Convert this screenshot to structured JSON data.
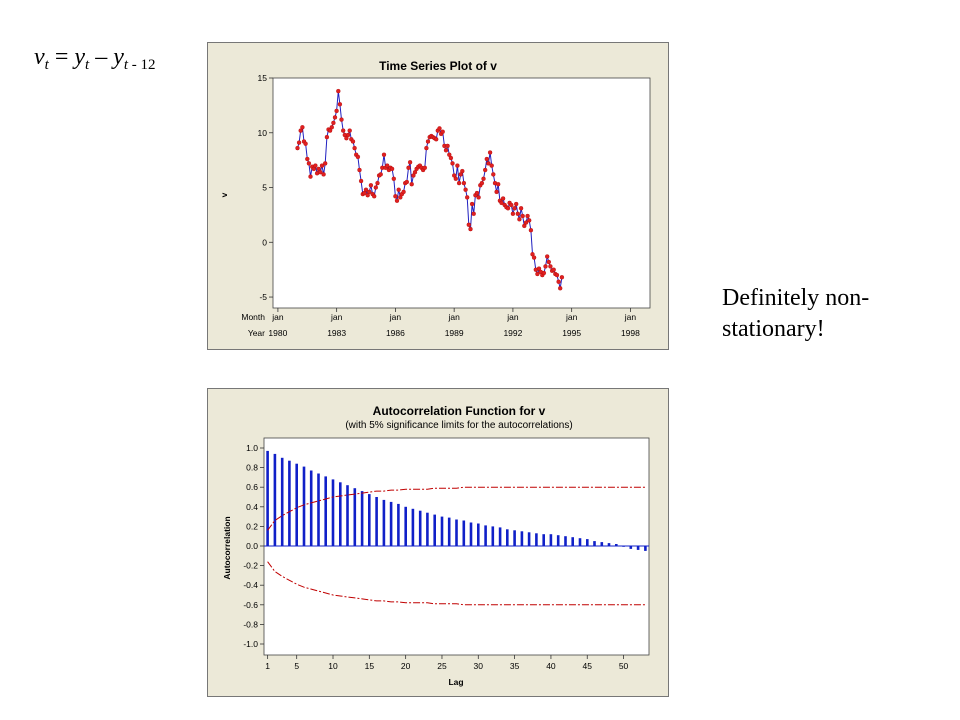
{
  "formula": {
    "v": "v",
    "v_sub": "t",
    "eq": " = ",
    "y1": "y",
    "y1_sub": "t",
    "minus": " – ",
    "y2": "y",
    "y2_sub_t": "t",
    "y2_sub_rest": " - 12"
  },
  "note": {
    "line1": "Definitely non-",
    "line2": "stationary!"
  },
  "chart_data": [
    {
      "type": "line",
      "title": "Time Series Plot of v",
      "ylabel": "v",
      "ylim": [
        -6,
        15
      ],
      "yticks": [
        "15",
        "10",
        "5",
        "0",
        "-5"
      ],
      "x_row1_label": "Month",
      "x_row2_label": "Year",
      "xtick_months": [
        "jan",
        "jan",
        "jan",
        "jan",
        "jan",
        "jan",
        "jan"
      ],
      "xtick_years": [
        "1980",
        "1983",
        "1986",
        "1989",
        "1992",
        "1995",
        "1998"
      ],
      "start": "1981-01",
      "point_color": "#e02020",
      "line_color": "#2020c0",
      "values": [
        8.6,
        9.1,
        10.2,
        10.5,
        9.2,
        9.0,
        7.6,
        7.2,
        6.0,
        6.9,
        6.7,
        7.0,
        6.3,
        6.7,
        6.4,
        7.0,
        6.2,
        7.2,
        9.6,
        10.3,
        10.2,
        10.5,
        10.9,
        11.4,
        12.0,
        13.8,
        12.6,
        11.2,
        10.2,
        9.8,
        9.5,
        9.8,
        10.2,
        9.4,
        9.2,
        8.6,
        8.0,
        7.8,
        6.6,
        5.6,
        4.4,
        4.5,
        4.8,
        4.3,
        4.6,
        5.2,
        4.4,
        4.2,
        5.0,
        5.4,
        6.1,
        6.2,
        6.8,
        8.0,
        6.8,
        7.0,
        6.6,
        6.8,
        6.7,
        5.8,
        4.2,
        3.8,
        4.8,
        4.1,
        4.4,
        4.6,
        5.4,
        5.5,
        6.8,
        7.3,
        5.3,
        6.1,
        6.4,
        6.7,
        6.9,
        7.0,
        6.8,
        6.6,
        6.8,
        8.6,
        9.2,
        9.6,
        9.7,
        9.6,
        9.5,
        9.4,
        10.2,
        10.4,
        9.9,
        10.1,
        8.8,
        8.4,
        8.8,
        8.0,
        7.7,
        7.2,
        6.1,
        5.8,
        7.0,
        5.4,
        6.2,
        6.5,
        5.4,
        4.8,
        4.1,
        1.6,
        1.2,
        3.5,
        2.6,
        4.3,
        4.5,
        4.1,
        5.2,
        5.4,
        5.8,
        6.6,
        7.6,
        7.2,
        8.2,
        7.0,
        6.2,
        5.4,
        4.6,
        5.3,
        3.8,
        3.6,
        4.0,
        3.4,
        3.2,
        3.1,
        3.6,
        3.4,
        2.6,
        3.1,
        3.5,
        2.6,
        2.1,
        3.1,
        2.4,
        1.5,
        1.8,
        2.4,
        2.0,
        1.1,
        -1.1,
        -1.4,
        -2.5,
        -2.9,
        -2.4,
        -2.7,
        -3.0,
        -2.8,
        -2.2,
        -1.3,
        -1.8,
        -2.2,
        -2.6,
        -2.5,
        -2.9,
        -3.0,
        -3.6,
        -4.2,
        -3.2
      ]
    },
    {
      "type": "bar",
      "title": "Autocorrelation Function for v",
      "subtitle": "(with 5% significance limits for the autocorrelations)",
      "xlabel": "Lag",
      "ylabel": "Autocorrelation",
      "ylim": [
        -1.0,
        1.0
      ],
      "xlim": [
        0.5,
        53.5
      ],
      "yticks": [
        "1.0",
        "0.8",
        "0.6",
        "0.4",
        "0.2",
        "0.0",
        "-0.2",
        "-0.4",
        "-0.6",
        "-0.8",
        "-1.0"
      ],
      "xticks": [
        1,
        5,
        10,
        15,
        20,
        25,
        30,
        35,
        40,
        45,
        50
      ],
      "bar_color": "#1020c8",
      "limit_color": "#c00000",
      "lags": [
        1,
        2,
        3,
        4,
        5,
        6,
        7,
        8,
        9,
        10,
        11,
        12,
        13,
        14,
        15,
        16,
        17,
        18,
        19,
        20,
        21,
        22,
        23,
        24,
        25,
        26,
        27,
        28,
        29,
        30,
        31,
        32,
        33,
        34,
        35,
        36,
        37,
        38,
        39,
        40,
        41,
        42,
        43,
        44,
        45,
        46,
        47,
        48,
        49,
        50,
        51,
        52,
        53
      ],
      "values": [
        0.97,
        0.94,
        0.9,
        0.87,
        0.84,
        0.81,
        0.77,
        0.74,
        0.71,
        0.68,
        0.65,
        0.62,
        0.59,
        0.56,
        0.53,
        0.5,
        0.47,
        0.45,
        0.43,
        0.4,
        0.38,
        0.36,
        0.34,
        0.32,
        0.3,
        0.29,
        0.27,
        0.26,
        0.24,
        0.23,
        0.21,
        0.2,
        0.19,
        0.17,
        0.16,
        0.15,
        0.14,
        0.13,
        0.12,
        0.12,
        0.11,
        0.1,
        0.09,
        0.08,
        0.07,
        0.05,
        0.04,
        0.03,
        0.02,
        0.0,
        -0.03,
        -0.04,
        -0.05
      ],
      "upper_limit": [
        0.16,
        0.26,
        0.31,
        0.35,
        0.39,
        0.42,
        0.44,
        0.46,
        0.48,
        0.5,
        0.51,
        0.52,
        0.53,
        0.54,
        0.55,
        0.56,
        0.56,
        0.57,
        0.57,
        0.58,
        0.58,
        0.58,
        0.58,
        0.59,
        0.59,
        0.59,
        0.59,
        0.6,
        0.6,
        0.6,
        0.6,
        0.6,
        0.6,
        0.6,
        0.6,
        0.6,
        0.6,
        0.6,
        0.6,
        0.6,
        0.6,
        0.6,
        0.6,
        0.6,
        0.6,
        0.6,
        0.6,
        0.6,
        0.6,
        0.6,
        0.6,
        0.6,
        0.6
      ]
    }
  ]
}
